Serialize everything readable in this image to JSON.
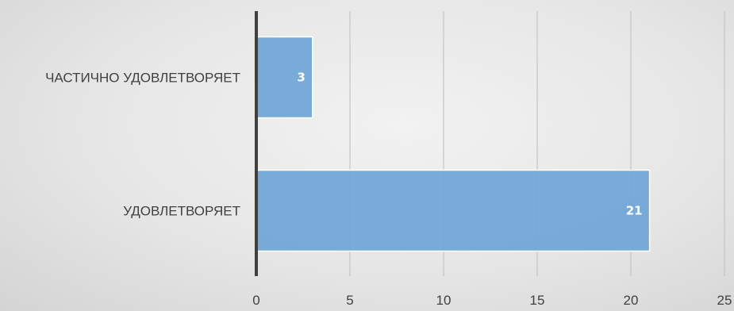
{
  "chart_data": {
    "type": "bar",
    "orientation": "horizontal",
    "categories": [
      "ЧАСТИЧНО УДОВЛЕТВОРЯЕТ",
      "УДОВЛЕТВОРЯЕТ"
    ],
    "values": [
      3,
      21
    ],
    "data_labels": [
      "3",
      "21"
    ],
    "x_ticks": [
      "0",
      "5",
      "10",
      "15",
      "20",
      "25"
    ],
    "xlim": [
      0,
      25
    ],
    "grid": true,
    "legend": "none",
    "bar_color": "#6fa5d8",
    "axis_color": "#404040",
    "title": "",
    "xlabel": "",
    "ylabel": ""
  }
}
